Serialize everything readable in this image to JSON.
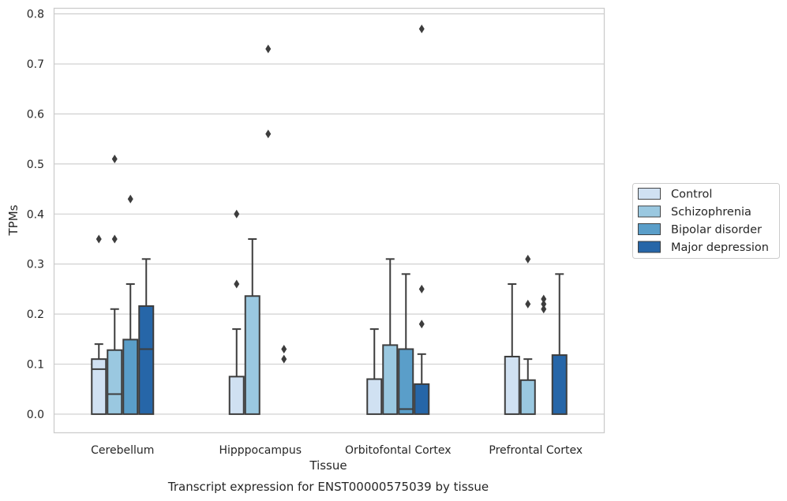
{
  "chart_data": {
    "type": "box",
    "title": "Transcript expression for ENST00000575039 by tissue",
    "xlabel": "Tissue",
    "ylabel": "TPMs",
    "ylim": [
      -0.038,
      0.812
    ],
    "yticks": [
      0.0,
      0.1,
      0.2,
      0.3,
      0.4,
      0.5,
      0.6,
      0.7,
      0.8
    ],
    "ytick_labels": [
      "0.0",
      "0.1",
      "0.2",
      "0.3",
      "0.4",
      "0.5",
      "0.6",
      "0.7",
      "0.8"
    ],
    "grid": true,
    "legend_position": "right",
    "categories": [
      "Cerebellum",
      "Hipppocampus",
      "Orbitofontal Cortex",
      "Prefrontal Cortex"
    ],
    "series": [
      {
        "name": "Control",
        "color": "#d0e1f2",
        "boxes": [
          {
            "q1": 0.0,
            "median": 0.09,
            "q3": 0.11,
            "whisker_low": 0.0,
            "whisker_high": 0.14,
            "outliers": [
              0.35
            ]
          },
          {
            "q1": 0.0,
            "median": 0.0,
            "q3": 0.075,
            "whisker_low": 0.0,
            "whisker_high": 0.17,
            "outliers": [
              0.26,
              0.4
            ]
          },
          {
            "q1": 0.0,
            "median": 0.0,
            "q3": 0.07,
            "whisker_low": 0.0,
            "whisker_high": 0.17,
            "outliers": []
          },
          {
            "q1": 0.0,
            "median": 0.0,
            "q3": 0.115,
            "whisker_low": 0.0,
            "whisker_high": 0.26,
            "outliers": []
          }
        ]
      },
      {
        "name": "Schizophrenia",
        "color": "#9ac8e0",
        "boxes": [
          {
            "q1": 0.0,
            "median": 0.04,
            "q3": 0.128,
            "whisker_low": 0.0,
            "whisker_high": 0.21,
            "outliers": [
              0.35,
              0.51
            ]
          },
          {
            "q1": 0.0,
            "median": 0.0,
            "q3": 0.236,
            "whisker_low": 0.0,
            "whisker_high": 0.35,
            "outliers": []
          },
          {
            "q1": 0.0,
            "median": 0.0,
            "q3": 0.138,
            "whisker_low": 0.0,
            "whisker_high": 0.31,
            "outliers": []
          },
          {
            "q1": 0.0,
            "median": 0.0,
            "q3": 0.068,
            "whisker_low": 0.0,
            "whisker_high": 0.11,
            "outliers": [
              0.22,
              0.31
            ]
          }
        ]
      },
      {
        "name": "Bipolar disorder",
        "color": "#5a9ec9",
        "boxes": [
          {
            "q1": 0.0,
            "median": 0.0,
            "q3": 0.149,
            "whisker_low": 0.0,
            "whisker_high": 0.26,
            "outliers": [
              0.43
            ]
          },
          {
            "q1": 0.0,
            "median": 0.0,
            "q3": 0.0,
            "whisker_low": 0.0,
            "whisker_high": 0.0,
            "outliers": [
              0.56,
              0.73
            ]
          },
          {
            "q1": 0.0,
            "median": 0.01,
            "q3": 0.13,
            "whisker_low": 0.0,
            "whisker_high": 0.28,
            "outliers": []
          },
          {
            "q1": 0.0,
            "median": 0.0,
            "q3": 0.0,
            "whisker_low": 0.0,
            "whisker_high": 0.0,
            "outliers": [
              0.21,
              0.22,
              0.23
            ]
          }
        ]
      },
      {
        "name": "Major depression",
        "color": "#2666a8",
        "boxes": [
          {
            "q1": 0.0,
            "median": 0.13,
            "q3": 0.216,
            "whisker_low": 0.0,
            "whisker_high": 0.31,
            "outliers": []
          },
          {
            "q1": 0.0,
            "median": 0.0,
            "q3": 0.0,
            "whisker_low": 0.0,
            "whisker_high": 0.0,
            "outliers": [
              0.11,
              0.13
            ]
          },
          {
            "q1": 0.0,
            "median": 0.0,
            "q3": 0.06,
            "whisker_low": 0.0,
            "whisker_high": 0.12,
            "outliers": [
              0.18,
              0.25,
              0.77
            ]
          },
          {
            "q1": 0.0,
            "median": 0.0,
            "q3": 0.118,
            "whisker_low": 0.0,
            "whisker_high": 0.28,
            "outliers": []
          }
        ]
      }
    ]
  }
}
